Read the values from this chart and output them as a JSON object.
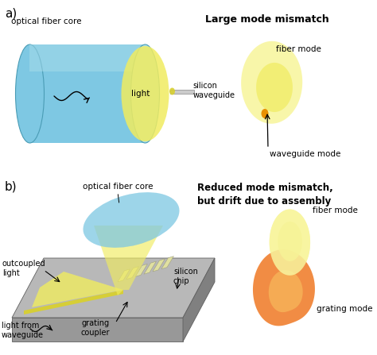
{
  "panel_a_label": "a)",
  "panel_b_label": "b)",
  "title_a": "Large mode mismatch",
  "title_b": "Reduced mode mismatch,\nbut drift due to assembly",
  "label_fiber_core_a": "optical fiber core",
  "label_light_a": "light",
  "label_waveguide_a": "silicon\nwaveguide",
  "label_fiber_mode_a": "fiber mode",
  "label_waveguide_mode_a": "waveguide mode",
  "label_fiber_core_b": "optical fiber core",
  "label_outcoupled": "outcoupled\nlight",
  "label_silicon_chip": "silicon\nchip",
  "label_light_from": "light from\nwaveguide",
  "label_grating_coupler": "grating\ncoupler",
  "label_fiber_mode_b": "fiber mode",
  "label_grating_mode": "grating mode",
  "color_fiber_blue": "#7EC8E3",
  "color_fiber_blue_light": "#a8dcea",
  "color_fiber_blue_dark": "#4a9cb5",
  "color_yellow": "#F0EC60",
  "color_yellow_light": "#F8F5A0",
  "color_yellow_mid": "#D8D030",
  "color_orange": "#F08030",
  "color_orange_light": "#F8C060",
  "color_gray_top": "#B8B8B8",
  "color_gray_front": "#989898",
  "color_gray_side": "#808080",
  "color_gray_ridge": "#D0D0D0",
  "bg_color": "#ffffff"
}
